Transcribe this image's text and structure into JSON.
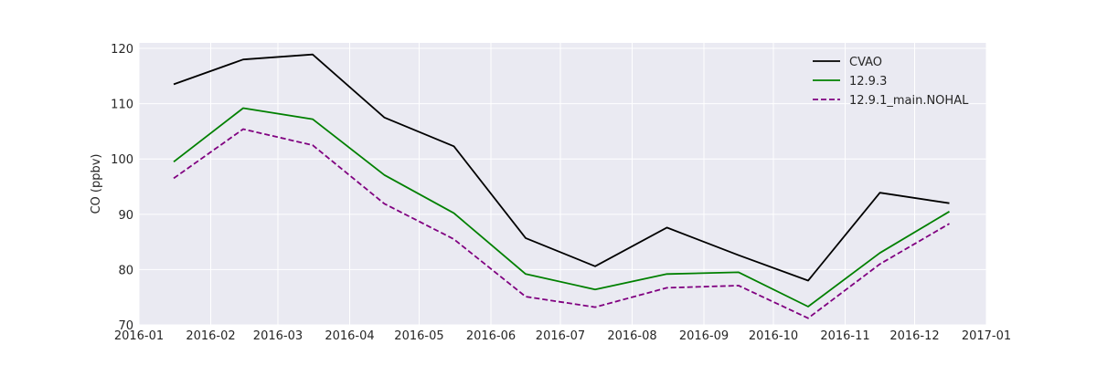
{
  "chart_data": {
    "type": "line",
    "title": "",
    "xlabel": "",
    "ylabel": "CO (ppbv)",
    "x_type": "date",
    "xlim": [
      "2016-01-01",
      "2017-01-01"
    ],
    "ylim": [
      70,
      121
    ],
    "x": [
      "2016-01-16",
      "2016-02-15",
      "2016-03-16",
      "2016-04-16",
      "2016-05-16",
      "2016-06-16",
      "2016-07-16",
      "2016-08-16",
      "2016-09-16",
      "2016-10-16",
      "2016-11-16",
      "2016-12-16"
    ],
    "x_ticks": [
      "2016-01-01",
      "2016-02-01",
      "2016-03-01",
      "2016-04-01",
      "2016-05-01",
      "2016-06-01",
      "2016-07-01",
      "2016-08-01",
      "2016-09-01",
      "2016-10-01",
      "2016-11-01",
      "2016-12-01",
      "2017-01-01"
    ],
    "x_tick_labels": [
      "2016-01",
      "2016-02",
      "2016-03",
      "2016-04",
      "2016-05",
      "2016-06",
      "2016-07",
      "2016-08",
      "2016-09",
      "2016-10",
      "2016-11",
      "2016-12",
      "2017-01"
    ],
    "y_ticks": [
      70,
      80,
      90,
      100,
      110,
      120
    ],
    "y_tick_labels": [
      "70",
      "80",
      "90",
      "100",
      "110",
      "120"
    ],
    "grid": true,
    "legend_position": "top-right",
    "series": [
      {
        "name": "CVAO",
        "color": "#000000",
        "style": "solid",
        "values": [
          113.5,
          118.0,
          118.9,
          107.5,
          102.3,
          85.7,
          80.6,
          87.6,
          82.6,
          78.0,
          93.9,
          92.0
        ]
      },
      {
        "name": "12.9.3",
        "color": "#008000",
        "style": "solid",
        "values": [
          99.5,
          109.2,
          107.2,
          97.1,
          90.2,
          79.2,
          76.4,
          79.2,
          79.5,
          73.3,
          83.0,
          90.5
        ]
      },
      {
        "name": "12.9.1_main.NOHAL",
        "color": "#800080",
        "style": "dashed",
        "values": [
          96.5,
          105.4,
          102.5,
          91.9,
          85.5,
          75.1,
          73.2,
          76.7,
          77.1,
          71.2,
          81.0,
          88.3
        ]
      }
    ]
  }
}
